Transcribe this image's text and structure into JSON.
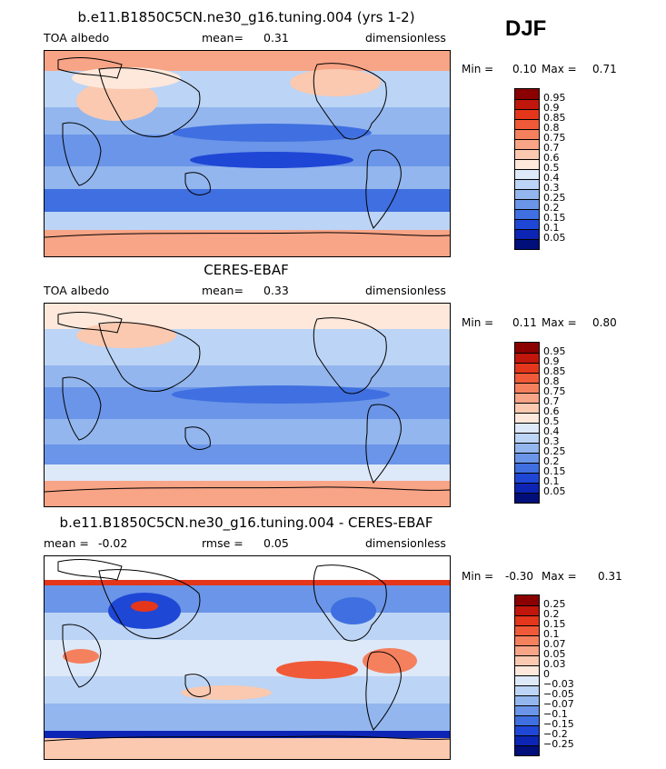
{
  "season": "DJF",
  "panels": [
    {
      "title": "b.e11.B1850C5CN.ne30_g16.tuning.004 (yrs 1-2)",
      "left_label": "TOA albedo",
      "mean_label": "mean=",
      "mean_value": "0.31",
      "units": "dimensionless",
      "min_label": "Min =",
      "min_value": "0.10",
      "max_label": "Max =",
      "max_value": "0.71",
      "colorbar": {
        "labels": [
          "0.95",
          "0.9",
          "0.85",
          "0.8",
          "0.75",
          "0.7",
          "0.6",
          "0.5",
          "0.4",
          "0.3",
          "0.25",
          "0.2",
          "0.15",
          "0.1",
          "0.05"
        ],
        "colors": [
          "#8b0000",
          "#c0160c",
          "#e3361b",
          "#f05a38",
          "#f5805e",
          "#f8a486",
          "#fac9b0",
          "#fde8db",
          "#dde9f8",
          "#bcd4f5",
          "#93b6ee",
          "#6a95e8",
          "#3f6fe0",
          "#1f47d6",
          "#0c25b4",
          "#000f7a"
        ]
      }
    },
    {
      "title": "CERES-EBAF",
      "left_label": "TOA albedo",
      "mean_label": "mean=",
      "mean_value": "0.33",
      "units": "dimensionless",
      "min_label": "Min =",
      "min_value": "0.11",
      "max_label": "Max =",
      "max_value": "0.80",
      "colorbar": {
        "labels": [
          "0.95",
          "0.9",
          "0.85",
          "0.8",
          "0.75",
          "0.7",
          "0.6",
          "0.5",
          "0.4",
          "0.3",
          "0.25",
          "0.2",
          "0.15",
          "0.1",
          "0.05"
        ],
        "colors": [
          "#8b0000",
          "#c0160c",
          "#e3361b",
          "#f05a38",
          "#f5805e",
          "#f8a486",
          "#fac9b0",
          "#fde8db",
          "#dde9f8",
          "#bcd4f5",
          "#93b6ee",
          "#6a95e8",
          "#3f6fe0",
          "#1f47d6",
          "#0c25b4",
          "#000f7a"
        ]
      }
    },
    {
      "title": "b.e11.B1850C5CN.ne30_g16.tuning.004 - CERES-EBAF",
      "left_label": "mean =",
      "mean_label": "-0.02",
      "rmse_label": "rmse =",
      "rmse_value": "0.05",
      "units": "dimensionless",
      "min_label": "Min =",
      "min_value": "-0.30",
      "max_label": "Max =",
      "max_value": "0.31",
      "colorbar": {
        "labels": [
          "0.25",
          "0.2",
          "0.15",
          "0.1",
          "0.07",
          "0.05",
          "0.03",
          "0",
          "-0.03",
          "-0.05",
          "-0.07",
          "-0.1",
          "-0.15",
          "-0.2",
          "-0.25"
        ],
        "colors": [
          "#8b0000",
          "#c0160c",
          "#e3361b",
          "#f05a38",
          "#f5805e",
          "#f8a486",
          "#fac9b0",
          "#fde8db",
          "#dde9f8",
          "#bcd4f5",
          "#93b6ee",
          "#6a95e8",
          "#3f6fe0",
          "#1f47d6",
          "#0c25b4",
          "#000f7a"
        ]
      }
    }
  ]
}
